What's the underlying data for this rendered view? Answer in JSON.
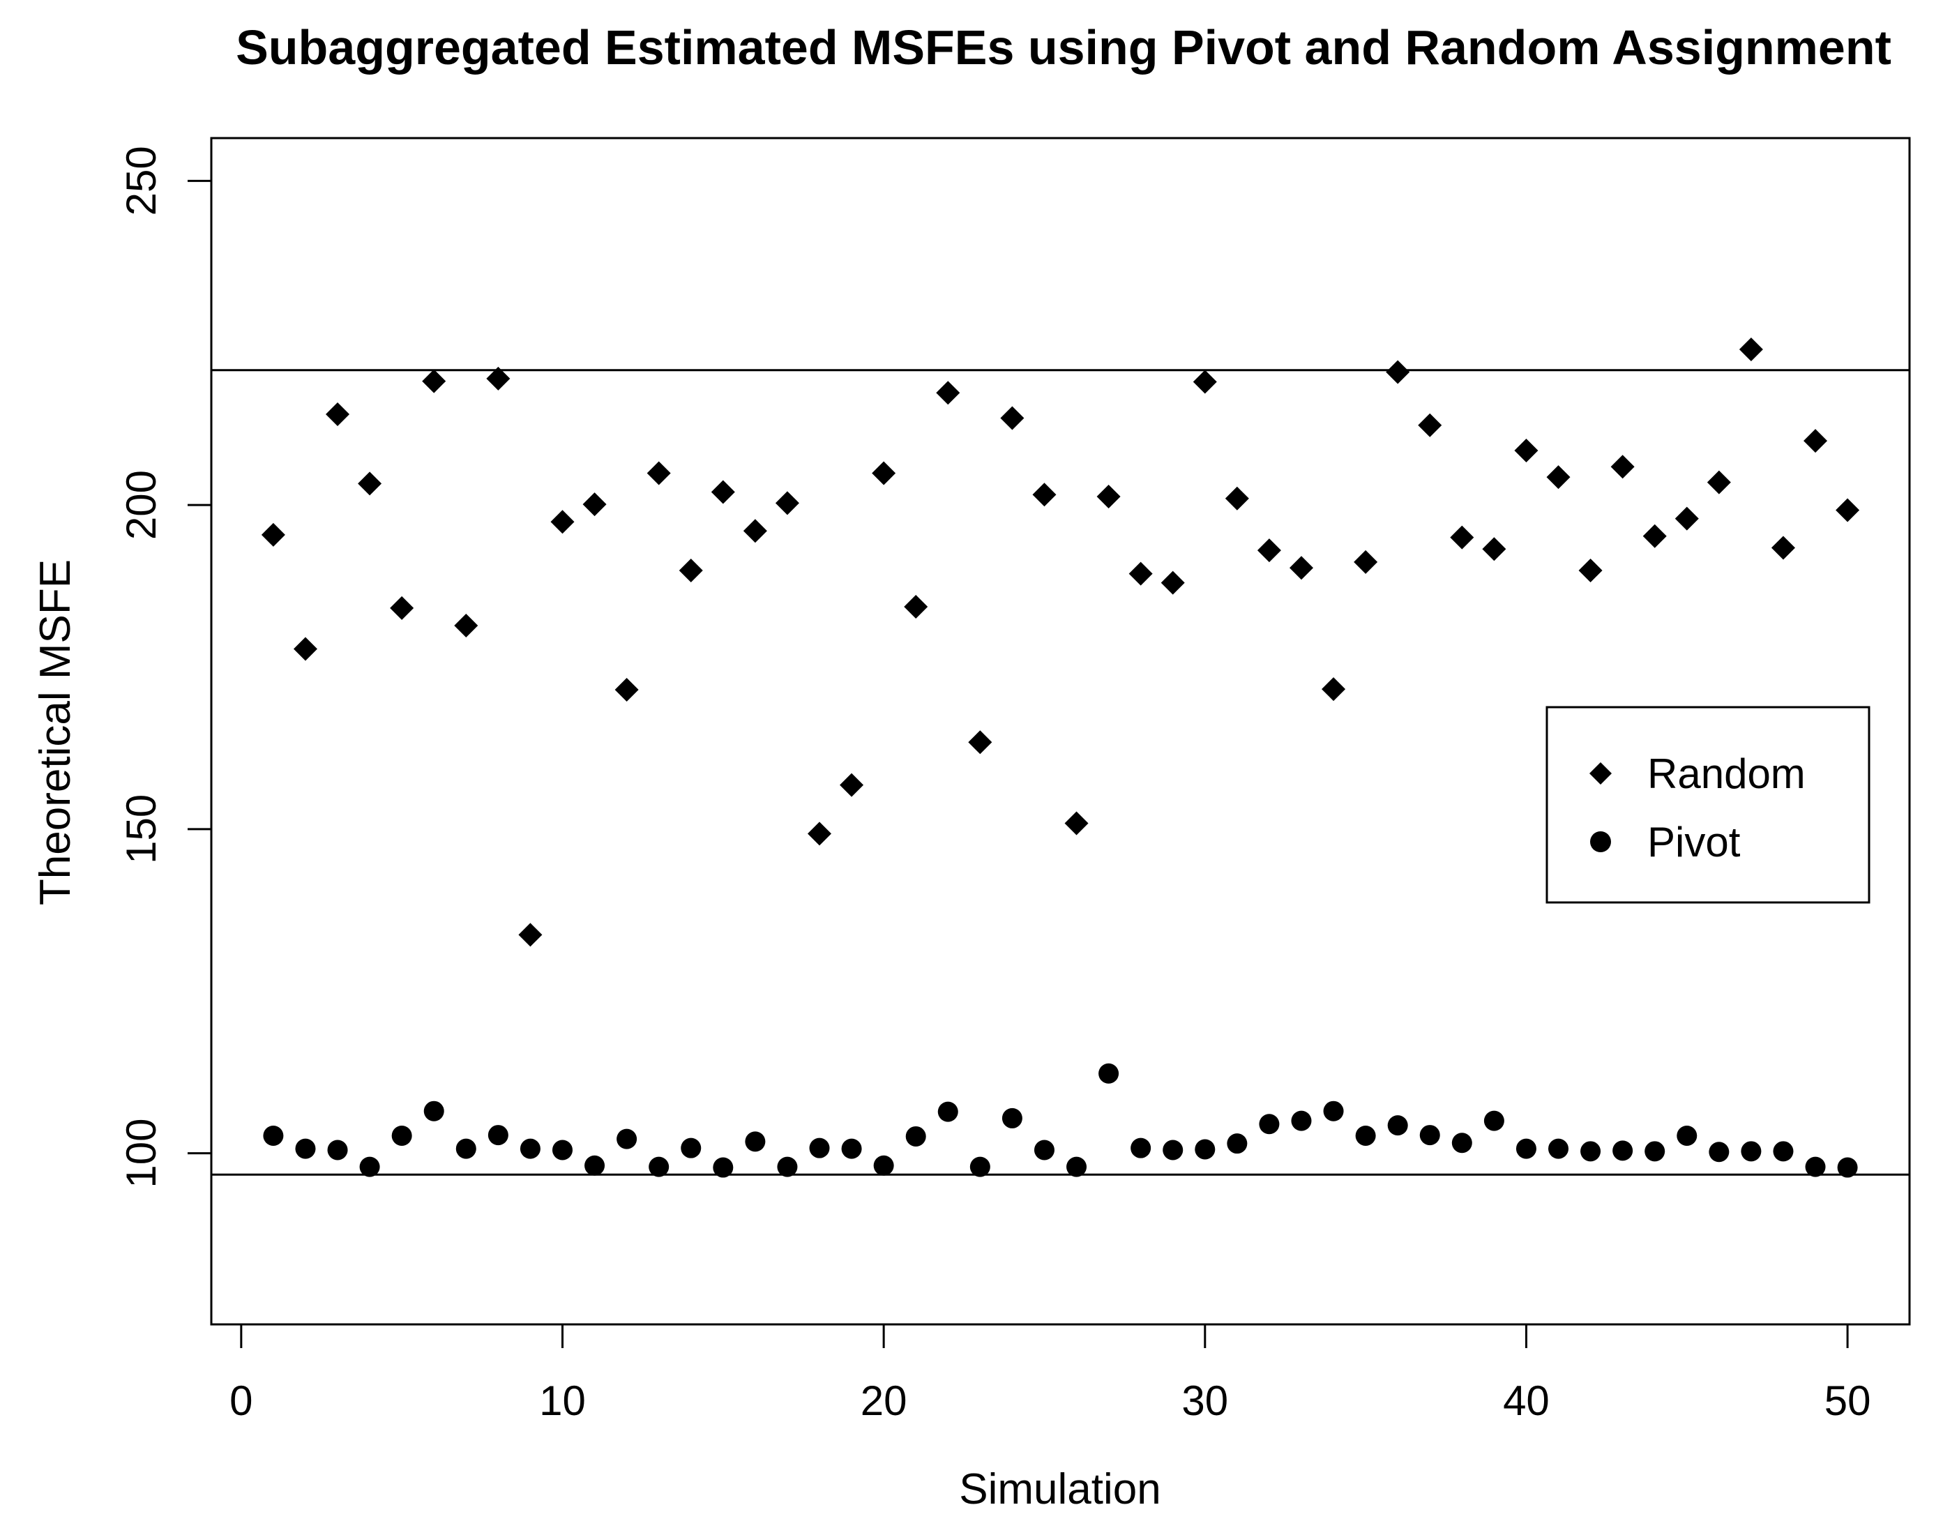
{
  "title": "Subaggregated Estimated MSFEs using Pivot and Random Assignment",
  "axes": {
    "x_label": "Simulation",
    "y_label": "Theoretical MSFE"
  },
  "legend": {
    "items": [
      {
        "label": "Random",
        "marker": "diamond-icon"
      },
      {
        "label": "Pivot",
        "marker": "circle-icon"
      }
    ]
  },
  "chart_data": {
    "type": "scatter",
    "title": "Subaggregated Estimated MSFEs using Pivot and Random Assignment",
    "xlabel": "Simulation",
    "ylabel": "Theoretical MSFE",
    "x_ticks": [
      0,
      10,
      20,
      30,
      40,
      50
    ],
    "y_ticks": [
      100,
      150,
      200,
      250
    ],
    "x_range": [
      -0.93,
      51.93
    ],
    "y_range": [
      73.6,
      256.6
    ],
    "grid": false,
    "legend_position": "right-middle",
    "reference_lines": [
      220.8,
      96.7
    ],
    "point_color": "#000000",
    "simulations": [
      1,
      2,
      3,
      4,
      5,
      6,
      7,
      8,
      9,
      10,
      11,
      12,
      13,
      14,
      15,
      16,
      17,
      18,
      19,
      20,
      21,
      22,
      23,
      24,
      25,
      26,
      27,
      28,
      29,
      30,
      31,
      32,
      33,
      34,
      35,
      36,
      37,
      38,
      39,
      40,
      41,
      42,
      43,
      44,
      45,
      46,
      47,
      48,
      49,
      50
    ],
    "series": [
      {
        "name": "Random",
        "marker": "diamond",
        "values": [
          195.4,
          177.8,
          214.0,
          203.3,
          184.1,
          219.1,
          181.4,
          219.5,
          133.7,
          197.4,
          200.1,
          171.5,
          204.9,
          189.9,
          202.0,
          196.0,
          200.3,
          149.3,
          156.8,
          204.9,
          184.3,
          217.3,
          163.4,
          213.4,
          201.6,
          150.9,
          201.3,
          189.4,
          188.0,
          219.0,
          201.0,
          193.0,
          190.3,
          171.6,
          191.2,
          220.5,
          212.3,
          195.0,
          193.2,
          208.4,
          204.3,
          189.9,
          205.9,
          195.2,
          197.9,
          203.5,
          224.0,
          193.4,
          209.9,
          199.2
        ]
      },
      {
        "name": "Pivot",
        "marker": "circle",
        "values": [
          102.7,
          100.7,
          100.5,
          97.9,
          102.7,
          106.5,
          100.7,
          102.8,
          100.7,
          100.5,
          98.1,
          102.2,
          97.9,
          100.8,
          97.8,
          101.8,
          97.9,
          100.8,
          100.7,
          98.1,
          102.6,
          106.4,
          97.9,
          105.4,
          100.5,
          97.9,
          112.3,
          100.8,
          100.5,
          100.6,
          101.5,
          104.5,
          105.0,
          106.5,
          102.7,
          104.3,
          102.8,
          101.6,
          105.0,
          100.7,
          100.7,
          100.3,
          100.4,
          100.3,
          102.7,
          100.2,
          100.3,
          100.3,
          97.9,
          97.8
        ]
      }
    ]
  }
}
